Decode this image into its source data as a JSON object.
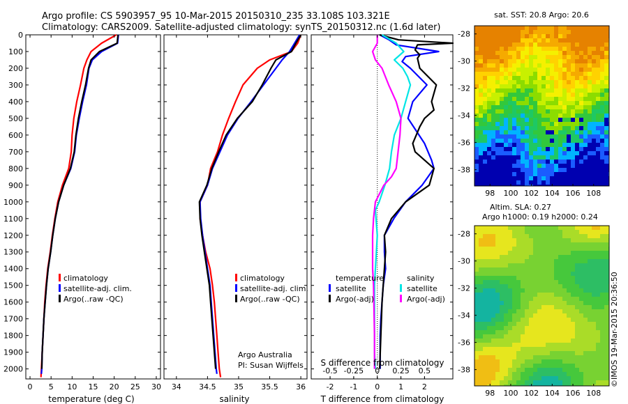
{
  "header": {
    "title_line1": "Argo profile: CS 5903957_95 10-Mar-2015 20150310_235 33.108S 103.321E",
    "title_line2": "Climatology: CARS2009. Satellite-adjusted climatology: synTS_20150312.nc (1.6d later)"
  },
  "colors": {
    "climatology": "#ff0000",
    "satellite": "#0000ff",
    "argo": "#000000",
    "s_satellite": "#00e5e5",
    "s_argo": "#ff00ff"
  },
  "chart_data": [
    {
      "id": "temperature",
      "type": "line",
      "xlabel": "temperature (deg C)",
      "ylabel": "",
      "xlim": [
        -1,
        31
      ],
      "ylim": [
        2060,
        0
      ],
      "invert_y": true,
      "x_ticks": [
        0,
        5,
        10,
        15,
        20,
        25,
        30
      ],
      "y_ticks": [
        0,
        100,
        200,
        300,
        400,
        500,
        600,
        700,
        800,
        900,
        1000,
        1100,
        1200,
        1300,
        1400,
        1500,
        1600,
        1700,
        1800,
        1900,
        2000
      ],
      "legend": [
        "climatology",
        "satellite-adj. clim.",
        "Argo(..raw -QC)"
      ],
      "legend_placement": "lower-middle",
      "series": [
        {
          "name": "climatology",
          "color": "#ff0000",
          "x": [
            20.5,
            17,
            14.5,
            13.5,
            12.8,
            12,
            11.1,
            10.4,
            10,
            9.8,
            9.2,
            7.7,
            6.6,
            5.9,
            5.3,
            4.8,
            4.2,
            3.8,
            3.5,
            3.3,
            3.1,
            2.9,
            2.8,
            2.7,
            2.6
          ],
          "y": [
            0,
            50,
            100,
            150,
            200,
            300,
            400,
            500,
            600,
            700,
            800,
            900,
            1000,
            1100,
            1200,
            1300,
            1400,
            1500,
            1600,
            1700,
            1800,
            1900,
            1950,
            2000,
            2050
          ]
        },
        {
          "name": "satellite-adj. clim.",
          "color": "#0000ff",
          "x": [
            21,
            20.8,
            17,
            14.8,
            14,
            13.4,
            12.5,
            11.7,
            11,
            10.6,
            9.7,
            8,
            6.8,
            6,
            5.4,
            4.9,
            4.3,
            3.9,
            3.6,
            3.3,
            3.1,
            2.9,
            2.8,
            2.7
          ],
          "y": [
            0,
            50,
            100,
            150,
            200,
            300,
            400,
            500,
            600,
            700,
            800,
            900,
            1000,
            1100,
            1200,
            1300,
            1400,
            1500,
            1600,
            1700,
            1800,
            1900,
            2000,
            2030
          ]
        },
        {
          "name": "Argo(..raw -QC)",
          "color": "#000000",
          "x": [
            20.9,
            20.7,
            16.5,
            14.5,
            13.9,
            13.2,
            12.3,
            11.5,
            10.9,
            10.5,
            9.6,
            8,
            6.8,
            6,
            5.4,
            4.9,
            4.3,
            3.9,
            3.6,
            3.3,
            3.1,
            2.9,
            2.8
          ],
          "y": [
            0,
            50,
            100,
            150,
            200,
            300,
            400,
            500,
            600,
            700,
            800,
            900,
            1000,
            1100,
            1200,
            1300,
            1400,
            1500,
            1600,
            1700,
            1800,
            1900,
            2000
          ]
        }
      ]
    },
    {
      "id": "salinity",
      "type": "line",
      "xlabel": "salinity",
      "ylabel": "",
      "xlim": [
        33.8,
        36.1
      ],
      "ylim": [
        2060,
        0
      ],
      "invert_y": true,
      "x_ticks": [
        34,
        34.5,
        35,
        35.5,
        36
      ],
      "x_tick_labels": [
        "34",
        "34.5",
        "35",
        "35.5",
        "36"
      ],
      "legend": [
        "climatology",
        "satellite-adj. clim.",
        "Argo(..raw -QC)"
      ],
      "legend_placement": "lower-middle",
      "annotation": [
        "Argo Australia",
        "PI: Susan Wijffels"
      ],
      "series": [
        {
          "name": "climatology",
          "color": "#ff0000",
          "x": [
            36,
            35.95,
            35.85,
            35.5,
            35.3,
            35.07,
            34.95,
            34.84,
            34.74,
            34.66,
            34.55,
            34.5,
            34.38,
            34.38,
            34.42,
            34.47,
            34.54,
            34.58,
            34.61,
            34.63,
            34.65,
            34.67,
            34.69,
            34.71
          ],
          "y": [
            0,
            50,
            100,
            150,
            200,
            300,
            400,
            500,
            600,
            700,
            800,
            900,
            1000,
            1100,
            1200,
            1300,
            1400,
            1500,
            1600,
            1700,
            1800,
            1900,
            2000,
            2050
          ]
        },
        {
          "name": "satellite-adj. clim.",
          "color": "#0000ff",
          "x": [
            35.98,
            35.9,
            35.82,
            35.7,
            35.6,
            35.4,
            35.2,
            34.99,
            34.82,
            34.7,
            34.58,
            34.5,
            34.38,
            34.39,
            34.42,
            34.46,
            34.5,
            34.54,
            34.56,
            34.58,
            34.6,
            34.62,
            34.64,
            34.65
          ],
          "y": [
            0,
            50,
            100,
            150,
            200,
            300,
            400,
            500,
            600,
            700,
            800,
            900,
            1000,
            1100,
            1200,
            1300,
            1400,
            1500,
            1600,
            1700,
            1800,
            1900,
            2000,
            2030
          ]
        },
        {
          "name": "Argo(..raw -QC)",
          "color": "#000000",
          "x": [
            36,
            35.92,
            35.85,
            35.6,
            35.52,
            35.38,
            35.22,
            34.98,
            34.8,
            34.68,
            34.57,
            34.49,
            34.37,
            34.38,
            34.41,
            34.45,
            34.49,
            34.53,
            34.55,
            34.57,
            34.59,
            34.61,
            34.63
          ],
          "y": [
            0,
            50,
            100,
            150,
            200,
            300,
            400,
            500,
            600,
            700,
            800,
            900,
            1000,
            1100,
            1200,
            1300,
            1400,
            1500,
            1600,
            1700,
            1800,
            1900,
            2000
          ]
        }
      ]
    },
    {
      "id": "difference",
      "type": "line",
      "xlabel": "T difference from climatology",
      "xlabel_top": "S difference from climatology",
      "xlim": [
        -2.8,
        3.2
      ],
      "ylim": [
        2060,
        0
      ],
      "invert_y": true,
      "x_ticks": [
        -2,
        -1,
        0,
        1,
        2
      ],
      "s_ticks": [
        -0.5,
        -0.25,
        0,
        0.25,
        0.5
      ],
      "s_tick_labels": [
        "-0.5",
        "-0.25",
        "0",
        "0.25",
        "0.5"
      ],
      "s_scale": 4,
      "legend_groups": [
        {
          "title": "temperature",
          "items": [
            "satellite",
            "Argo(-adj)"
          ]
        },
        {
          "title": "salinity",
          "items": [
            "satellite",
            "Argo(-adj)"
          ]
        }
      ],
      "series": [
        {
          "name": "T satellite",
          "color": "#0000ff",
          "x": [
            0.1,
            0.5,
            0.8,
            2.6,
            1.2,
            1.05,
            1.4,
            2.1,
            1.5,
            1.3,
            2,
            2.3,
            2.4,
            1.9,
            1.2,
            0.7,
            0.3,
            0.3,
            0.35,
            0.25,
            0.2,
            0.15,
            0.12,
            0.12
          ],
          "y": [
            0,
            30,
            60,
            100,
            130,
            160,
            200,
            300,
            400,
            500,
            650,
            750,
            800,
            900,
            1000,
            1100,
            1200,
            1300,
            1400,
            1500,
            1600,
            1700,
            1800,
            2000
          ]
        },
        {
          "name": "T Argo(-adj)",
          "color": "#000000",
          "x": [
            0.1,
            0.9,
            3.2,
            1.7,
            1.6,
            1.8,
            1.7,
            1.8,
            2.5,
            2.3,
            2.4,
            2,
            1.8,
            1.5,
            1.6,
            2.4,
            2.2,
            1.2,
            0.6,
            0.3,
            0.35,
            0.3,
            0.25,
            0.2,
            0.15,
            0.1
          ],
          "y": [
            0,
            30,
            50,
            60,
            90,
            120,
            140,
            200,
            300,
            400,
            450,
            500,
            550,
            650,
            700,
            800,
            900,
            1000,
            1100,
            1200,
            1300,
            1400,
            1500,
            1600,
            1800,
            2000
          ]
        },
        {
          "name": "S satellite",
          "color": "#00e5e5",
          "x": [
            0.05,
            0.2,
            0.28,
            0.18,
            0.27,
            0.32,
            0.35,
            0.3,
            0.25,
            0.18,
            0.15,
            0.13,
            0.08,
            0.02,
            -0.02,
            0,
            -0.01,
            -0.02,
            -0.03,
            -0.03,
            -0.03,
            -0.02
          ],
          "y": [
            0,
            50,
            100,
            150,
            200,
            250,
            300,
            400,
            500,
            600,
            700,
            800,
            900,
            1000,
            1050,
            1200,
            1300,
            1400,
            1500,
            1700,
            1900,
            2000
          ]
        },
        {
          "name": "S Argo(-adj)",
          "color": "#ff00ff",
          "x": [
            0,
            0,
            -0.05,
            -0.02,
            0.05,
            0.12,
            0.2,
            0.25,
            0.24,
            0.22,
            0.2,
            0.15,
            0.07,
            -0.02,
            -0.04,
            -0.05,
            -0.05,
            -0.05,
            -0.04,
            -0.03,
            -0.03
          ],
          "y": [
            0,
            50,
            100,
            150,
            200,
            300,
            400,
            500,
            600,
            700,
            800,
            850,
            900,
            1000,
            1100,
            1200,
            1300,
            1400,
            1500,
            1800,
            2000
          ]
        }
      ]
    },
    {
      "id": "sst_map",
      "type": "heatmap",
      "title": "sat. SST: 20.8  Argo: 20.6",
      "x_ticks": [
        98,
        100,
        102,
        104,
        106,
        108
      ],
      "y_ticks": [
        -28,
        -30,
        -32,
        -34,
        -36,
        -38
      ],
      "xlim": [
        96.5,
        109.5
      ],
      "ylim": [
        -39.2,
        -27.4
      ],
      "palette": [
        "#0000b0",
        "#1a5cff",
        "#00b4ff",
        "#1ec864",
        "#32c83c",
        "#8cdc00",
        "#c8f000",
        "#f5f000",
        "#ffd200",
        "#f5aa00",
        "#e68200"
      ]
    },
    {
      "id": "sla_map",
      "type": "heatmap",
      "title_line1": "Altim. SLA: 0.27",
      "title_line2": "Argo h1000: 0.19 h2000: 0.24",
      "x_ticks": [
        98,
        100,
        102,
        104,
        106,
        108
      ],
      "y_ticks": [
        -28,
        -30,
        -32,
        -34,
        -36,
        -38
      ],
      "xlim": [
        96.5,
        109.5
      ],
      "ylim": [
        -39.2,
        -27.4
      ],
      "palette": [
        "#14b4a0",
        "#2dbe64",
        "#46c83c",
        "#78d232",
        "#aadc28",
        "#e6e61e",
        "#f0be14",
        "#f08c14"
      ]
    }
  ],
  "footer": {
    "imos_stamp": "©IMOS 19-Mar-2015 20:36:50"
  }
}
